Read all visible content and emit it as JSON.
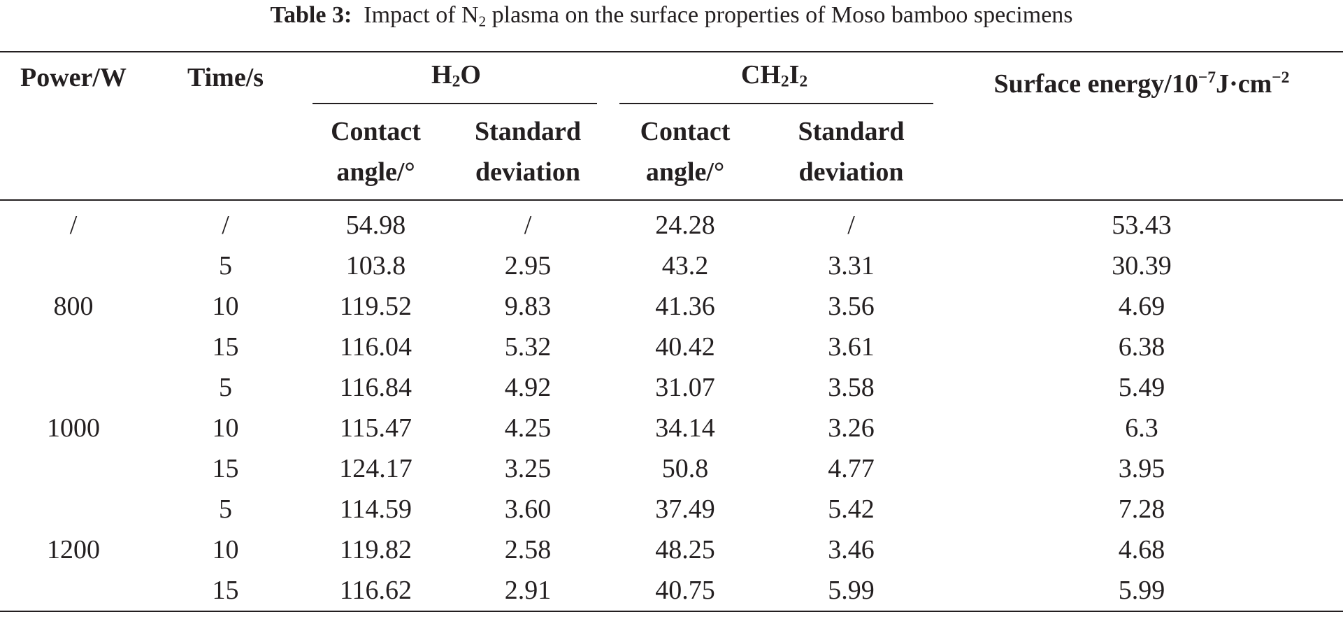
{
  "caption": {
    "label": "Table 3:",
    "text_before": "Impact of N",
    "sub": "2",
    "text_after": " plasma on the surface properties of Moso bamboo specimens"
  },
  "headers": {
    "power": "Power/W",
    "time": "Time/s",
    "h2o": {
      "main": "H",
      "sub": "2",
      "tail": "O"
    },
    "ch2i2": {
      "main1": "CH",
      "sub1": "2",
      "main2": "I",
      "sub2": "2"
    },
    "surface_energy": {
      "prefix": "Surface energy/10",
      "sup1": "−7",
      "mid": "J·cm",
      "sup2": "−2"
    },
    "contact_angle": {
      "line1": "Contact",
      "line2": "angle/°"
    },
    "std_dev": {
      "line1": "Standard",
      "line2": "deviation"
    }
  },
  "rows": [
    {
      "power": "/",
      "time": "/",
      "h2o_angle": "54.98",
      "h2o_sd": "/",
      "ch2i2_angle": "24.28",
      "ch2i2_sd": "/",
      "surface_energy": "53.43"
    },
    {
      "power": "800",
      "time": "5",
      "h2o_angle": "103.8",
      "h2o_sd": "2.95",
      "ch2i2_angle": "43.2",
      "ch2i2_sd": "3.31",
      "surface_energy": "30.39"
    },
    {
      "power": "800",
      "time": "10",
      "h2o_angle": "119.52",
      "h2o_sd": "9.83",
      "ch2i2_angle": "41.36",
      "ch2i2_sd": "3.56",
      "surface_energy": "4.69"
    },
    {
      "power": "800",
      "time": "15",
      "h2o_angle": "116.04",
      "h2o_sd": "5.32",
      "ch2i2_angle": "40.42",
      "ch2i2_sd": "3.61",
      "surface_energy": "6.38"
    },
    {
      "power": "1000",
      "time": "5",
      "h2o_angle": "116.84",
      "h2o_sd": "4.92",
      "ch2i2_angle": "31.07",
      "ch2i2_sd": "3.58",
      "surface_energy": "5.49"
    },
    {
      "power": "1000",
      "time": "10",
      "h2o_angle": "115.47",
      "h2o_sd": "4.25",
      "ch2i2_angle": "34.14",
      "ch2i2_sd": "3.26",
      "surface_energy": "6.3"
    },
    {
      "power": "1000",
      "time": "15",
      "h2o_angle": "124.17",
      "h2o_sd": "3.25",
      "ch2i2_angle": "50.8",
      "ch2i2_sd": "4.77",
      "surface_energy": "3.95"
    },
    {
      "power": "1200",
      "time": "5",
      "h2o_angle": "114.59",
      "h2o_sd": "3.60",
      "ch2i2_angle": "37.49",
      "ch2i2_sd": "5.42",
      "surface_energy": "7.28"
    },
    {
      "power": "1200",
      "time": "10",
      "h2o_angle": "119.82",
      "h2o_sd": "2.58",
      "ch2i2_angle": "48.25",
      "ch2i2_sd": "3.46",
      "surface_energy": "4.68"
    },
    {
      "power": "1200",
      "time": "15",
      "h2o_angle": "116.62",
      "h2o_sd": "2.91",
      "ch2i2_angle": "40.75",
      "ch2i2_sd": "5.99",
      "surface_energy": "5.99"
    }
  ]
}
